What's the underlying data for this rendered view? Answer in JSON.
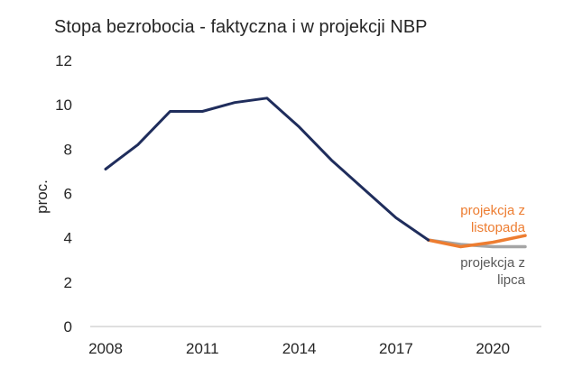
{
  "chart_data": {
    "type": "line",
    "title": "Stopa bezrobocia - faktyczna i w projekcji NBP",
    "ylabel": "proc.",
    "xlabel": "",
    "xlim": [
      2008,
      2021
    ],
    "ylim": [
      0,
      12
    ],
    "x_ticks": [
      "2008",
      "2011",
      "2014",
      "2017",
      "2020"
    ],
    "x_tick_values": [
      2008,
      2011,
      2014,
      2017,
      2020
    ],
    "y_ticks": [
      "0",
      "2",
      "4",
      "6",
      "8",
      "10",
      "12"
    ],
    "y_tick_values": [
      0,
      2,
      4,
      6,
      8,
      10,
      12
    ],
    "grid": false,
    "series": [
      {
        "key": "actual",
        "color": "#1f2d5c",
        "x": [
          2008,
          2009,
          2010,
          2011,
          2012,
          2013,
          2014,
          2015,
          2016,
          2017,
          2018
        ],
        "values": [
          7.1,
          8.2,
          9.7,
          9.7,
          10.1,
          10.3,
          9.0,
          7.5,
          6.2,
          4.9,
          3.9
        ]
      },
      {
        "key": "nov",
        "label_lines": [
          "projekcja z",
          "listopada"
        ],
        "color": "#ed7d31",
        "x": [
          2018,
          2019,
          2020,
          2021
        ],
        "values": [
          3.9,
          3.6,
          3.8,
          4.1
        ]
      },
      {
        "key": "jul",
        "label_lines": [
          "projekcja z",
          "lipca"
        ],
        "color": "#a5a5a5",
        "x": [
          2018,
          2019,
          2020,
          2021
        ],
        "values": [
          3.9,
          3.7,
          3.6,
          3.6
        ]
      }
    ]
  }
}
